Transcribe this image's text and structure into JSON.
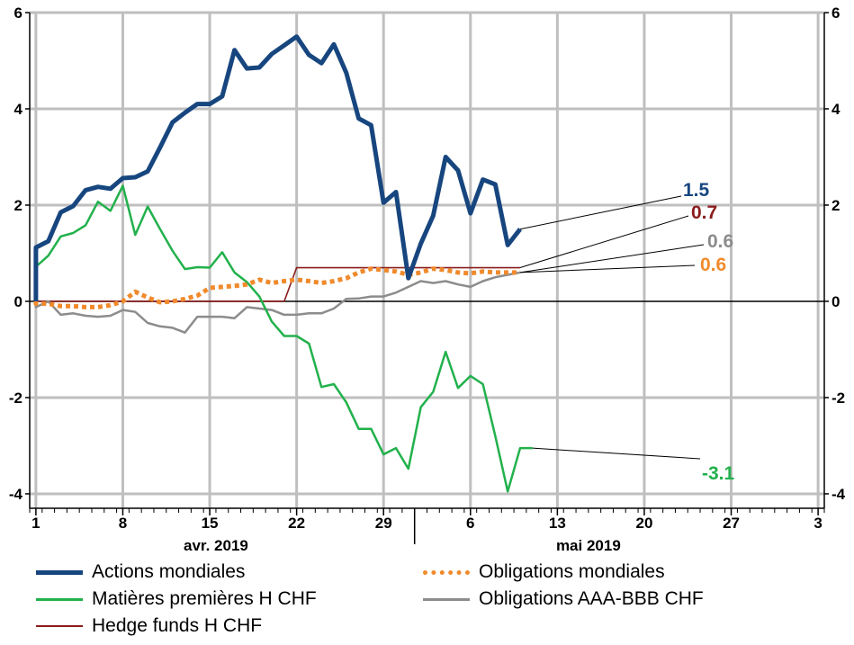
{
  "chart_data": {
    "type": "line",
    "title": "",
    "xlabel": "",
    "ylabel": "",
    "ylim": [
      -4.3,
      6
    ],
    "y_ticks": [
      -4,
      -2,
      0,
      2,
      4,
      6
    ],
    "y_tick_labels": [
      "-4",
      "-2",
      "0",
      "2",
      "4",
      "6"
    ],
    "x_range": [
      -0.5,
      63.5
    ],
    "x_ticks": [
      0,
      7,
      14,
      21,
      28,
      35,
      42,
      49,
      56,
      63
    ],
    "x_tick_labels": [
      "1",
      "8",
      "15",
      "22",
      "29",
      "6",
      "13",
      "20",
      "27",
      "3"
    ],
    "month_labels": [
      {
        "label": "avr. 2019",
        "x": 14.5
      },
      {
        "label": "mai 2019",
        "x": 44.5
      }
    ],
    "grid": true,
    "legend_position": "bottom",
    "x": [
      -1,
      0,
      1,
      2,
      3,
      4,
      5,
      6,
      7,
      8,
      9,
      10,
      11,
      12,
      13,
      14,
      15,
      16,
      17,
      18,
      19,
      20,
      21,
      22,
      23,
      24,
      25,
      26,
      27,
      28,
      29,
      30,
      31,
      32,
      33,
      34,
      35,
      36,
      37,
      38,
      39,
      40,
      41,
      42,
      43,
      44,
      45,
      46,
      47,
      48,
      49,
      50,
      51,
      52,
      53,
      54,
      55,
      56
    ],
    "series": [
      {
        "name": "Actions mondiales",
        "color": "#17467f",
        "width": 5,
        "dash": "",
        "end_label": "1.5",
        "values": [
          0.0,
          1.12,
          1.25,
          1.85,
          1.98,
          2.31,
          2.38,
          2.34,
          2.56,
          2.58,
          2.7,
          3.2,
          3.72,
          3.92,
          4.1,
          4.1,
          4.26,
          5.22,
          4.84,
          4.86,
          5.14,
          5.32,
          5.5,
          5.12,
          4.95,
          5.34,
          4.75,
          3.8,
          3.66,
          2.05,
          2.27,
          0.48,
          1.2,
          1.78,
          3.0,
          2.72,
          1.83,
          2.53,
          2.43,
          1.17,
          1.5,
          null,
          null,
          null,
          null,
          null,
          null,
          null,
          null,
          null,
          null,
          null,
          null,
          null,
          null,
          null,
          null,
          null
        ]
      },
      {
        "name": "Obligations mondiales",
        "color": "#f08a2c",
        "width": 5,
        "dash": "5,4",
        "end_label": "0.6",
        "values": [
          0.0,
          -0.05,
          -0.05,
          -0.1,
          -0.1,
          -0.12,
          -0.12,
          -0.08,
          0.0,
          0.2,
          0.08,
          -0.02,
          0.0,
          0.05,
          0.12,
          0.28,
          0.3,
          0.32,
          0.35,
          0.45,
          0.38,
          0.42,
          0.45,
          0.42,
          0.38,
          0.42,
          0.48,
          0.6,
          0.68,
          0.65,
          0.62,
          0.55,
          0.6,
          0.68,
          0.65,
          0.6,
          0.58,
          0.62,
          0.6,
          0.6,
          0.6,
          null,
          null,
          null,
          null,
          null,
          null,
          null,
          null,
          null,
          null,
          null,
          null,
          null,
          null,
          null,
          null,
          null
        ]
      },
      {
        "name": "Matières premières H CHF",
        "color": "#22b14c",
        "width": 2.5,
        "dash": "",
        "end_label": "-3.1",
        "values": [
          0.0,
          0.72,
          0.95,
          1.35,
          1.42,
          1.58,
          2.07,
          1.88,
          2.4,
          1.38,
          1.97,
          1.5,
          1.05,
          0.67,
          0.71,
          0.7,
          1.02,
          0.6,
          0.4,
          0.1,
          -0.42,
          -0.72,
          -0.72,
          -0.88,
          -1.78,
          -1.72,
          -2.1,
          -2.65,
          -2.65,
          -3.18,
          -3.05,
          -3.48,
          -2.2,
          -1.88,
          -1.05,
          -1.8,
          -1.55,
          -1.72,
          -2.8,
          -3.95,
          -3.05,
          -3.05,
          null,
          null,
          null,
          null,
          null,
          null,
          null,
          null,
          null,
          null,
          null,
          null,
          null,
          null,
          null,
          null
        ]
      },
      {
        "name": "Obligations AAA-BBB CHF",
        "color": "#8c8c8c",
        "width": 2.5,
        "dash": "",
        "end_label": "0.6",
        "values": [
          0.0,
          -0.12,
          0.0,
          -0.28,
          -0.25,
          -0.3,
          -0.32,
          -0.3,
          -0.18,
          -0.22,
          -0.45,
          -0.52,
          -0.55,
          -0.65,
          -0.32,
          -0.32,
          -0.32,
          -0.35,
          -0.12,
          -0.15,
          -0.18,
          -0.28,
          -0.28,
          -0.25,
          -0.25,
          -0.15,
          0.05,
          0.06,
          0.1,
          0.1,
          0.18,
          0.3,
          0.42,
          0.38,
          0.42,
          0.35,
          0.3,
          0.42,
          0.5,
          0.55,
          0.6,
          null,
          null,
          null,
          null,
          null,
          null,
          null,
          null,
          null,
          null,
          null,
          null,
          null,
          null,
          null,
          null,
          null
        ]
      },
      {
        "name": "Hedge funds H CHF",
        "color": "#8b1c1c",
        "width": 1.6,
        "dash": "",
        "end_label": "0.7",
        "step": true,
        "values": [
          0.0,
          0.0,
          0.0,
          0.0,
          0.0,
          0.0,
          0.0,
          0.0,
          0.0,
          0.0,
          0.0,
          0.0,
          0.0,
          0.0,
          0.0,
          0.0,
          0.0,
          0.0,
          0.0,
          0.0,
          0.0,
          0.0,
          0.7,
          0.7,
          0.7,
          0.7,
          0.7,
          0.7,
          0.7,
          0.7,
          0.7,
          0.7,
          0.7,
          0.7,
          0.7,
          0.7,
          0.7,
          0.7,
          0.7,
          0.7,
          0.7,
          null,
          null,
          null,
          null,
          null,
          null,
          null,
          null,
          null,
          null,
          null,
          null,
          null,
          null,
          null,
          null,
          null
        ]
      }
    ],
    "end_labels": [
      {
        "text": "1.5",
        "series": 0,
        "color": "#17467f"
      },
      {
        "text": "0.7",
        "series": 4,
        "color": "#8b1c1c"
      },
      {
        "text": "0.6",
        "series": 3,
        "color": "#8c8c8c"
      },
      {
        "text": "0.6",
        "series": 1,
        "color": "#f08a2c"
      },
      {
        "text": "-3.1",
        "series": 2,
        "color": "#22b14c"
      }
    ]
  }
}
